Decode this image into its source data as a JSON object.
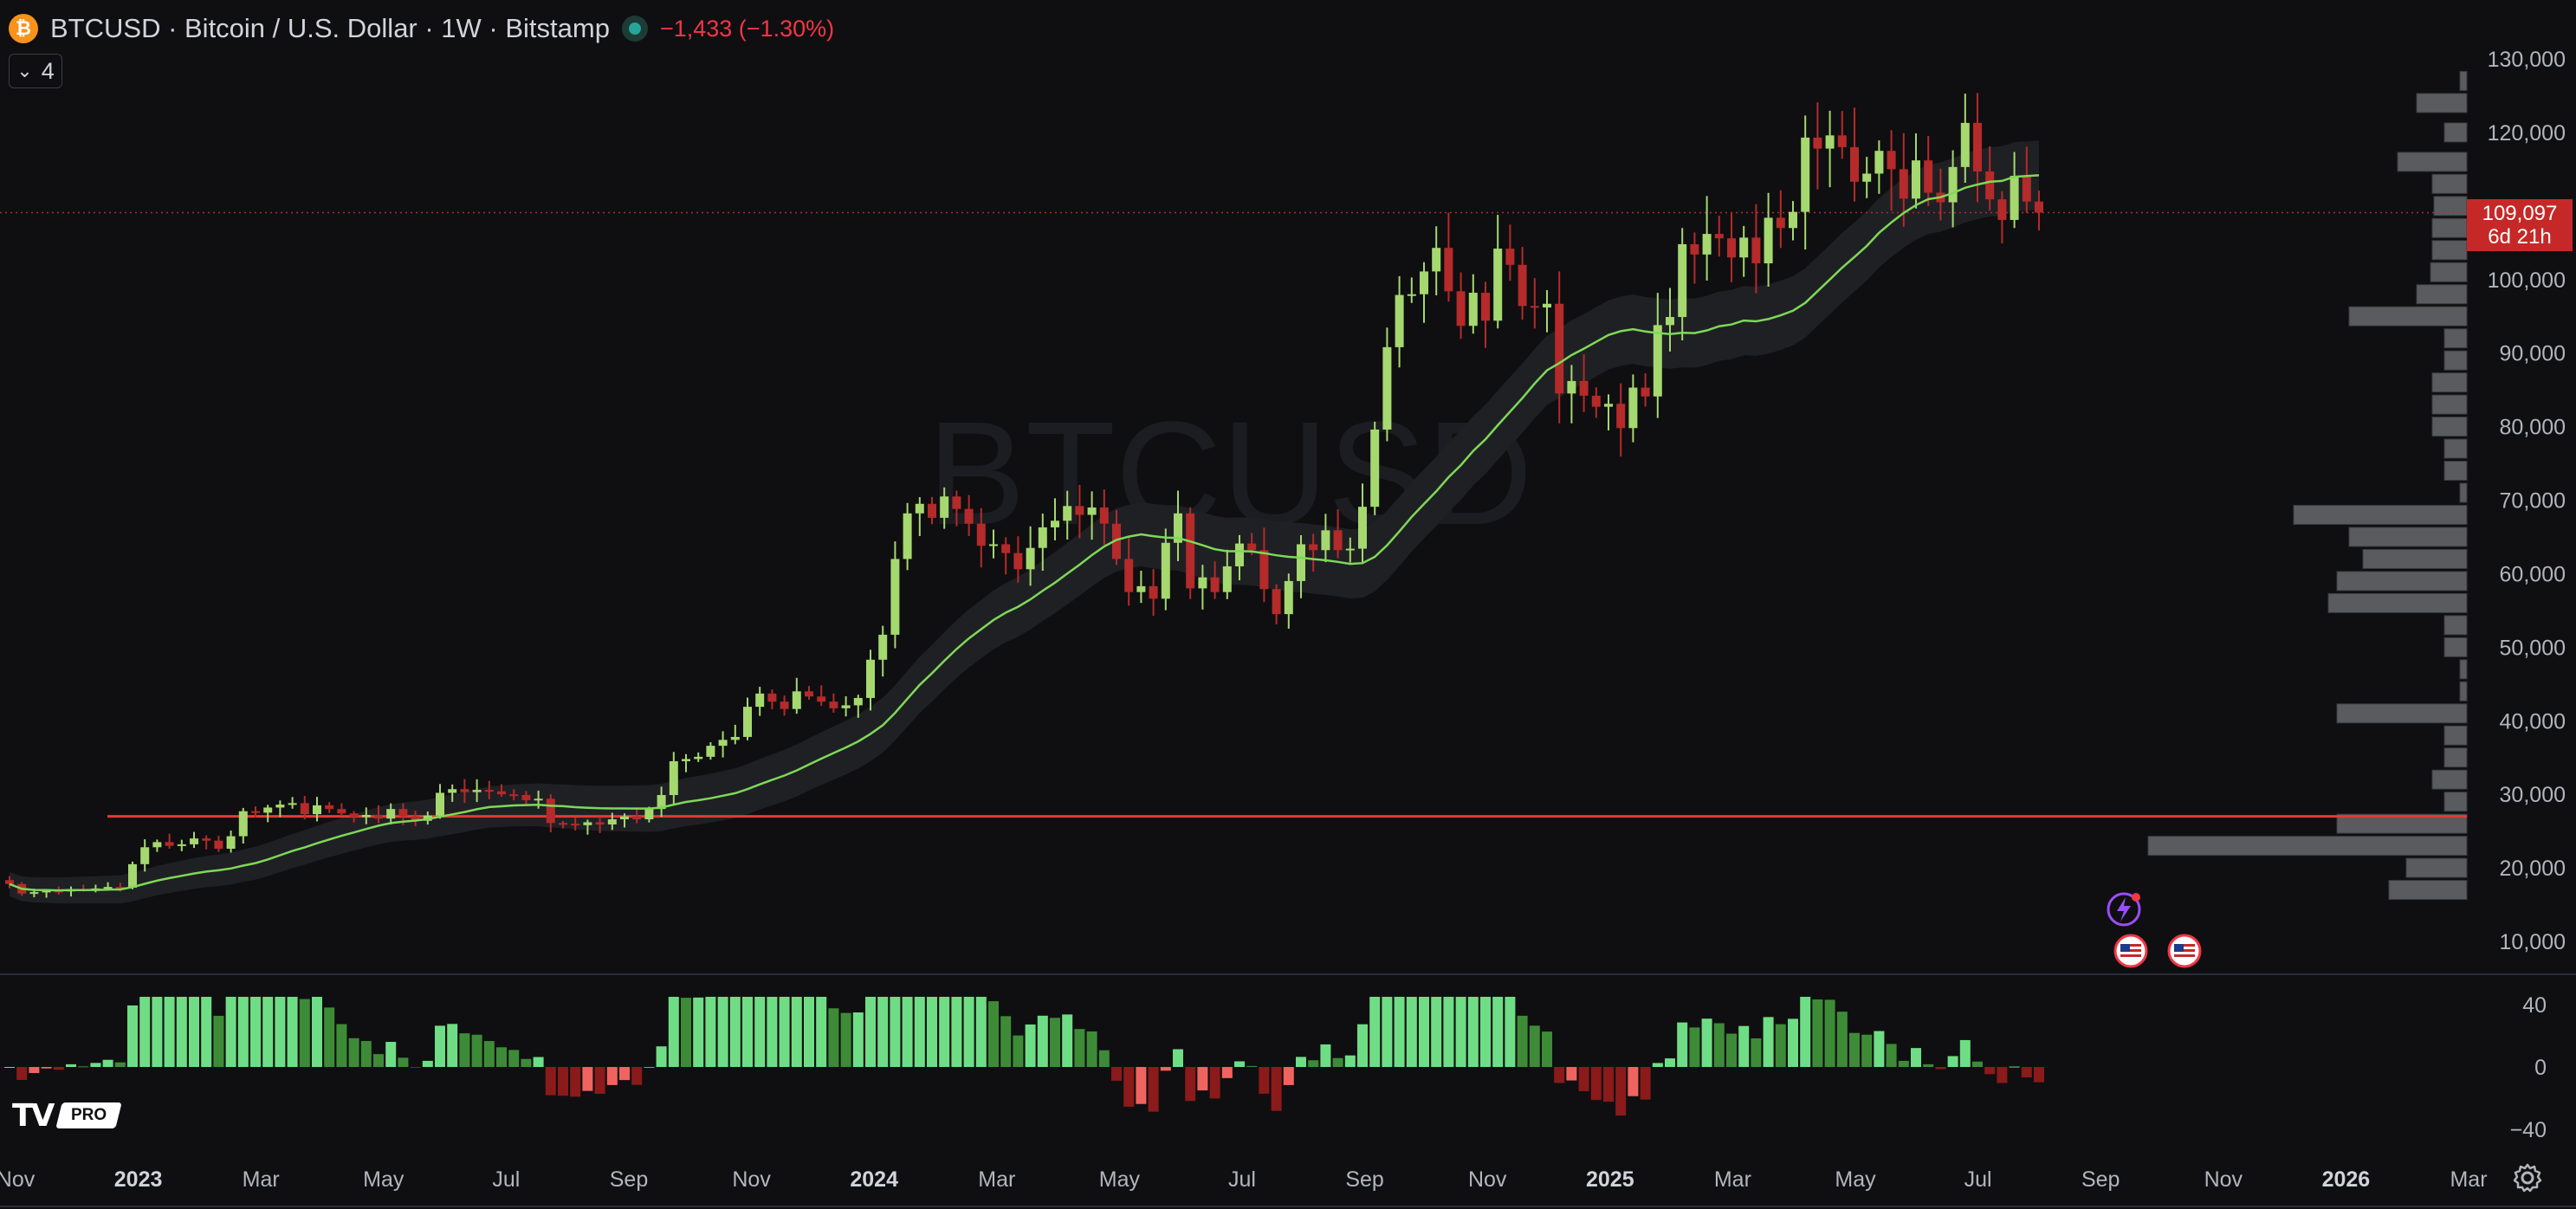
{
  "header": {
    "symbol_icon": "bitcoin-icon",
    "title": "BTCUSD · Bitcoin / U.S. Dollar · 1W · Bitstamp",
    "change": "−1,433 (−1.30%)",
    "indicator_count": "4"
  },
  "watermark": "BTCUSD",
  "price_label": {
    "price": "109,097",
    "countdown": "6d 21h"
  },
  "logo": {
    "mark": "TV",
    "badge": "PRO"
  },
  "colors": {
    "up": "#a5d86f",
    "down": "#b52a2a",
    "ma_line": "#7ed957",
    "support_line": "#e53935",
    "hist_green_bright": "#6fdd85",
    "hist_green_dark": "#3d8b37",
    "hist_red_dark": "#8b1a1a",
    "hist_red_light": "#f0645f"
  },
  "chart_data": {
    "type": "candlestick",
    "y_axis": {
      "ticks": [
        10000,
        20000,
        30000,
        40000,
        50000,
        60000,
        70000,
        80000,
        90000,
        100000,
        110000,
        120000,
        130000
      ],
      "labels": [
        "10,000",
        "20,000",
        "30,000",
        "40,000",
        "50,000",
        "60,000",
        "70,000",
        "80,000",
        "90,000",
        "100,000",
        "110,000",
        "120,000",
        "130,000"
      ]
    },
    "oscillator_axis": {
      "ticks": [
        40,
        0,
        -40
      ],
      "labels": [
        "40",
        "0",
        "−40"
      ]
    },
    "x_axis": {
      "labels": [
        {
          "t": "Nov",
          "bold": false
        },
        {
          "t": "2023",
          "bold": true
        },
        {
          "t": "Mar",
          "bold": false
        },
        {
          "t": "May",
          "bold": false
        },
        {
          "t": "Jul",
          "bold": false
        },
        {
          "t": "Sep",
          "bold": false
        },
        {
          "t": "Nov",
          "bold": false
        },
        {
          "t": "2024",
          "bold": true
        },
        {
          "t": "Mar",
          "bold": false
        },
        {
          "t": "May",
          "bold": false
        },
        {
          "t": "Jul",
          "bold": false
        },
        {
          "t": "Sep",
          "bold": false
        },
        {
          "t": "Nov",
          "bold": false
        },
        {
          "t": "2025",
          "bold": true
        },
        {
          "t": "Mar",
          "bold": false
        },
        {
          "t": "May",
          "bold": false
        },
        {
          "t": "Jul",
          "bold": false
        },
        {
          "t": "Sep",
          "bold": false
        },
        {
          "t": "Nov",
          "bold": false
        },
        {
          "t": "2026",
          "bold": true
        },
        {
          "t": "Mar",
          "bold": false
        }
      ]
    },
    "last_price": 109097,
    "support_level": 27000,
    "closes": [
      17800,
      16500,
      16700,
      16900,
      16800,
      17100,
      17000,
      17200,
      17400,
      17300,
      20500,
      22800,
      23500,
      23000,
      23200,
      24000,
      23700,
      22600,
      24300,
      27700,
      27500,
      28200,
      28600,
      28800,
      27300,
      28500,
      28000,
      27400,
      26900,
      27200,
      26700,
      28000,
      27000,
      26400,
      27100,
      30200,
      30700,
      30300,
      30600,
      30400,
      30000,
      29900,
      29200,
      29400,
      26100,
      26000,
      25800,
      26200,
      25900,
      26600,
      27000,
      26600,
      28000,
      29900,
      34500,
      34800,
      35100,
      36600,
      37400,
      37800,
      41900,
      43700,
      42600,
      41600,
      44000,
      43300,
      42600,
      41700,
      42100,
      43100,
      48300,
      51700,
      62000,
      68200,
      69500,
      67600,
      70500,
      68800,
      66800,
      63800,
      64000,
      62800,
      60600,
      63500,
      66300,
      67200,
      69200,
      68000,
      69000,
      66800,
      62000,
      57500,
      58300,
      56600,
      64200,
      68200,
      58000,
      59500,
      57500,
      61000,
      64100,
      63200,
      57900,
      54500,
      59000,
      64000,
      63200,
      65900,
      63200,
      63400,
      69100,
      79600,
      90800,
      97900,
      98000,
      101100,
      104300,
      98400,
      93700,
      98200,
      94400,
      104200,
      102000,
      96400,
      96200,
      96700,
      84500,
      86200,
      84200,
      82700,
      83100,
      79800,
      85300,
      84100,
      93800,
      94900,
      104800,
      103400,
      106200,
      105600,
      103000,
      105700,
      102200,
      108400,
      107000,
      109200,
      119300,
      117800,
      119600,
      118000,
      113300,
      114400,
      117500,
      115000,
      111000,
      116200,
      111800,
      110500,
      115300,
      121300,
      114700,
      110900,
      108100,
      114100,
      110600,
      109097
    ]
  }
}
